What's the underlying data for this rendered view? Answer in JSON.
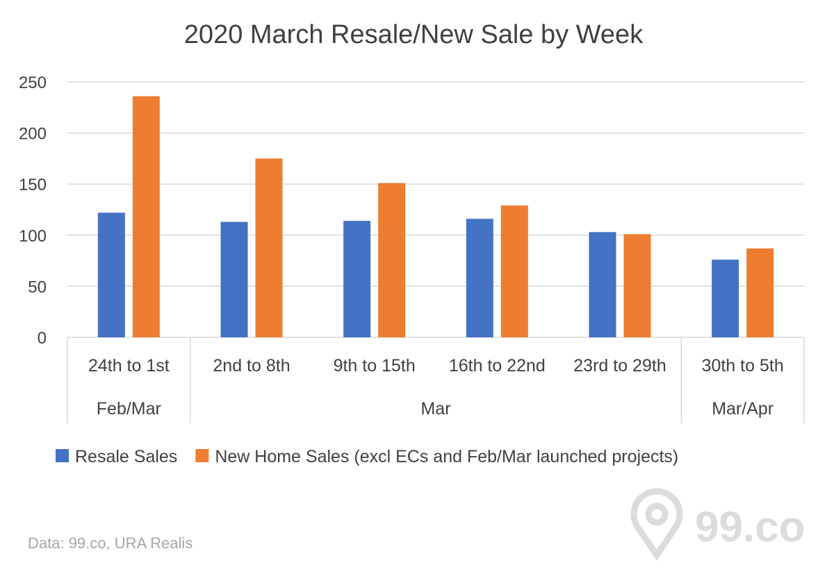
{
  "chart_data": {
    "type": "bar",
    "title": "2020 March Resale/New Sale by Week",
    "categories": [
      "24th to 1st",
      "2nd to 8th",
      "9th to 15th",
      "16th to 22nd",
      "23rd to 29th",
      "30th to 5th"
    ],
    "category_groups": [
      {
        "label": "Feb/Mar",
        "span": 1
      },
      {
        "label": "Mar",
        "span": 4
      },
      {
        "label": "Mar/Apr",
        "span": 1
      }
    ],
    "series": [
      {
        "name": "Resale Sales",
        "color": "#4472c4",
        "values": [
          122,
          113,
          114,
          116,
          103,
          76
        ]
      },
      {
        "name": "New Home Sales (excl ECs and Feb/Mar launched projects)",
        "color": "#ed7d31",
        "values": [
          236,
          175,
          151,
          129,
          101,
          87
        ]
      }
    ],
    "ylim": [
      0,
      250
    ],
    "yticks": [
      0,
      50,
      100,
      150,
      200,
      250
    ],
    "grid": true,
    "legend_position": "bottom",
    "xlabel": "",
    "ylabel": ""
  },
  "source_note": "Data: 99.co, URA Realis",
  "logo": {
    "text": "99.co",
    "icon": "map-pin-icon"
  },
  "colors": {
    "grid": "#d9d9d9",
    "text": "#404040",
    "watermark": "#dcdcdc"
  }
}
